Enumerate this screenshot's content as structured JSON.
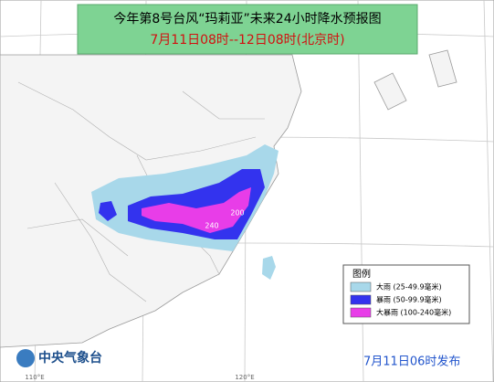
{
  "header": {
    "title": "今年第8号台风“玛莉亚”未来24小时降水预报图",
    "subtitle": "7月11日08时--12日08时(北京时)"
  },
  "legend": {
    "title": "图例",
    "items": [
      {
        "label": "大雨 (25-49.9毫米)",
        "color": "#a8d8ea"
      },
      {
        "label": "暴雨 (50-99.9毫米)",
        "color": "#3333ee"
      },
      {
        "label": "大暴雨 (100-240毫米)",
        "color": "#e83de8"
      }
    ]
  },
  "map_labels": [
    "240",
    "200"
  ],
  "longitude_labels": [
    "110°E",
    "120°E"
  ],
  "footer": {
    "agency": "中央气象台",
    "issued": "7月11日06时发布"
  }
}
